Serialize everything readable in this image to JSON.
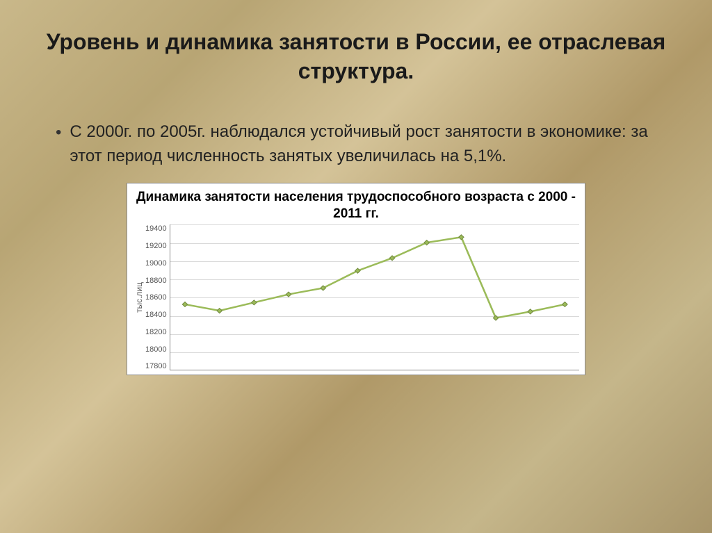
{
  "slide": {
    "title": "Уровень и динамика занятости в России, ее отраслевая структура.",
    "bullet_text": "С 2000г. по 2005г. наблюдался устойчивый рост занятости в экономике: за этот период численность занятых увеличилась на 5,1%."
  },
  "chart": {
    "type": "line",
    "title": "Динамика занятости населения трудоспособного возраста с 2000 - 2011 гг.",
    "ylabel": "тыс.лиц",
    "ylim": [
      17800,
      19400
    ],
    "ytick_step": 200,
    "yticks": [
      19400,
      19200,
      19000,
      18800,
      18600,
      18400,
      18200,
      18000,
      17800
    ],
    "x_count": 12,
    "values": [
      18520,
      18450,
      18540,
      18630,
      18700,
      18890,
      19030,
      19200,
      19260,
      18370,
      18440,
      18520
    ],
    "line_color": "#9bbb59",
    "marker_color": "#9bbb59",
    "marker_border": "#71893f",
    "marker_size": 5,
    "line_width": 2.5,
    "grid_color": "#d9d9d9",
    "background_color": "#ffffff",
    "border_color": "#888888",
    "title_fontsize": 19,
    "tick_fontsize": 11
  }
}
